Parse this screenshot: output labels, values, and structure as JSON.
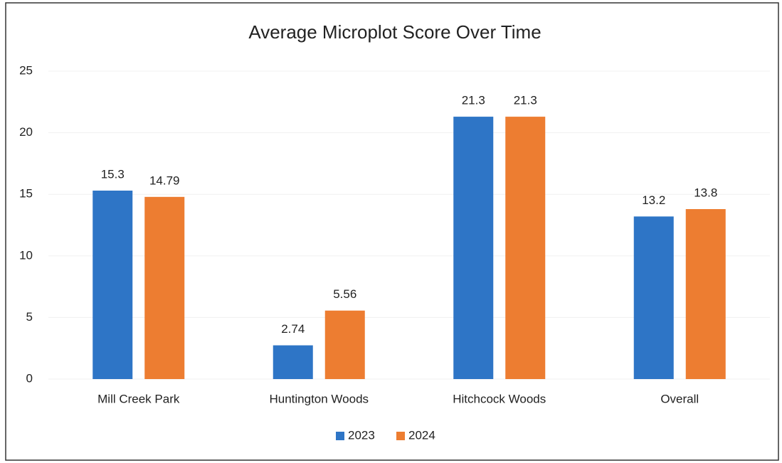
{
  "chart_data": {
    "type": "bar",
    "title": "Average Microplot Score Over Time",
    "categories": [
      "Mill Creek Park",
      "Huntington Woods",
      "Hitchcock Woods",
      "Overall"
    ],
    "series": [
      {
        "name": "2023",
        "color": "#2e75c6",
        "values": [
          15.3,
          2.74,
          21.3,
          13.2
        ]
      },
      {
        "name": "2024",
        "color": "#ed7d31",
        "values": [
          14.79,
          5.56,
          21.3,
          13.8
        ]
      }
    ],
    "ylim": [
      0,
      25
    ],
    "yticks": [
      0,
      5,
      10,
      15,
      20,
      25
    ],
    "grid": true,
    "legend": "bottom"
  }
}
